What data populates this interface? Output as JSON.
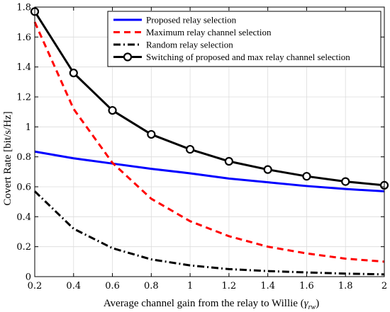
{
  "chart_data": {
    "type": "line",
    "title": "",
    "xlabel": "Average channel gain from the relay to Willie (",
    "xlabel_symbol": "γ",
    "xlabel_subscript": "rw",
    "xlabel_close": ")",
    "ylabel": "Covert Rate [bit/s/Hz]",
    "xlim": [
      0.2,
      2
    ],
    "ylim": [
      0,
      1.8
    ],
    "x_ticks": [
      "0.2",
      "0.4",
      "0.6",
      "0.8",
      "1",
      "1.2",
      "1.4",
      "1.6",
      "1.8",
      "2"
    ],
    "y_ticks": [
      "0",
      "0.2",
      "0.4",
      "0.6",
      "0.8",
      "1",
      "1.2",
      "1.4",
      "1.6",
      "1.8"
    ],
    "grid": true,
    "legend_position": "top-right",
    "x": [
      0.2,
      0.4,
      0.6,
      0.8,
      1.0,
      1.2,
      1.4,
      1.6,
      1.8,
      2.0
    ],
    "series": [
      {
        "name": "Proposed relay selection",
        "color": "#0000ff",
        "style": "solid",
        "marker": "none",
        "values": [
          0.835,
          0.79,
          0.755,
          0.72,
          0.69,
          0.655,
          0.63,
          0.605,
          0.585,
          0.57
        ]
      },
      {
        "name": "Maximum relay channel selection",
        "color": "#ff0000",
        "style": "dashed",
        "marker": "none",
        "values": [
          1.7,
          1.12,
          0.76,
          0.52,
          0.37,
          0.27,
          0.2,
          0.155,
          0.12,
          0.1
        ]
      },
      {
        "name": "Random relay selection",
        "color": "#000000",
        "style": "dashdot",
        "marker": "none",
        "values": [
          0.57,
          0.32,
          0.19,
          0.115,
          0.075,
          0.05,
          0.037,
          0.028,
          0.02,
          0.015
        ]
      },
      {
        "name": "Switching of proposed and max relay channel selection",
        "color": "#000000",
        "style": "solid",
        "marker": "circle",
        "values": [
          1.77,
          1.36,
          1.11,
          0.95,
          0.85,
          0.77,
          0.715,
          0.67,
          0.635,
          0.61
        ]
      }
    ]
  }
}
